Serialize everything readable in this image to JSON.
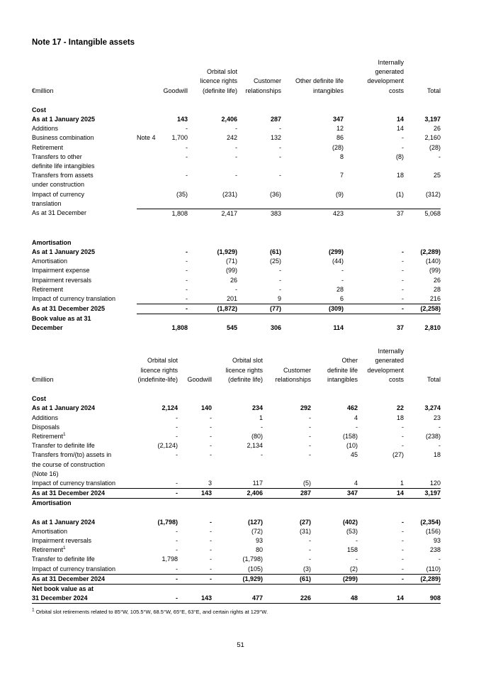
{
  "page": {
    "title": "Note 17 - Intangible assets",
    "number": "51"
  },
  "footnote": {
    "marker": "1",
    "text": "Orbital slot retirements related to 85°W, 105.5°W, 68.5°W, 65°E, 63°E, and certain rights at 129°W."
  },
  "table_2025": {
    "unit_label": "€million",
    "has_note_col": true,
    "columns": [
      "Goodwill",
      "Orbital slot\nlicence rights\n(definite life)",
      "Customer\nrelationships",
      "Other definite life\nintangibles",
      "Internally\ngenerated\ndevelopment\ncosts",
      "Total"
    ],
    "rows": [
      {
        "label": "Cost",
        "bold": true,
        "values": []
      },
      {
        "label": "As at 1 January 2025",
        "bold": true,
        "values": [
          "143",
          "2,406",
          "287",
          "347",
          "14",
          "3,197"
        ]
      },
      {
        "label": "Additions",
        "values": [
          "-",
          "-",
          "-",
          "12",
          "14",
          "26"
        ]
      },
      {
        "label": "Business combination",
        "note": "Note 4",
        "values": [
          "1,700",
          "242",
          "132",
          "86",
          "-",
          "2,160"
        ]
      },
      {
        "label": "Retirement",
        "values": [
          "-",
          "-",
          "-",
          "(28)",
          "-",
          "(28)"
        ]
      },
      {
        "label": "Transfers to other\ndefinite life intangibles",
        "values": [
          "-",
          "-",
          "-",
          "8",
          "(8)",
          "-"
        ]
      },
      {
        "label": "Transfers from assets\nunder construction",
        "values": [
          "-",
          "-",
          "-",
          "7",
          "18",
          "25"
        ]
      },
      {
        "label": "Impact of currency\ntranslation",
        "values": [
          "(35)",
          "(231)",
          "(36)",
          "(9)",
          "(1)",
          "(312)"
        ]
      },
      {
        "label": "As at 31 December",
        "rule_top": true,
        "values": [
          "1,808",
          "2,417",
          "383",
          "423",
          "37",
          "5,068"
        ]
      },
      {
        "label": "Amortisation",
        "bold": true,
        "gap": "lg",
        "values": []
      },
      {
        "label": "As at 1 January 2025",
        "bold": true,
        "values": [
          "-",
          "(1,929)",
          "(61)",
          "(299)",
          "-",
          "(2,289)"
        ]
      },
      {
        "label": "Amortisation",
        "values": [
          "-",
          "(71)",
          "(25)",
          "(44)",
          "-",
          "(140)"
        ]
      },
      {
        "label": "Impairment expense",
        "values": [
          "-",
          "(99)",
          "-",
          "-",
          "-",
          "(99)"
        ]
      },
      {
        "label": "Impairment reversals",
        "values": [
          "-",
          "26",
          "-",
          "-",
          "-",
          "26"
        ]
      },
      {
        "label": "Retirement",
        "values": [
          "-",
          "-",
          "-",
          "28",
          "-",
          "28"
        ]
      },
      {
        "label": "Impact of currency translation",
        "values": [
          "-",
          "201",
          "9",
          "6",
          "-",
          "216"
        ]
      },
      {
        "label": "As at 31 December 2025",
        "bold": true,
        "rule_top": true,
        "rule_bottom": true,
        "values": [
          "-",
          "(1,872)",
          "(77)",
          "(309)",
          "-",
          "(2,258)"
        ]
      },
      {
        "label": "Book value as at 31\nDecember",
        "bold": true,
        "valign": "bottom",
        "values": [
          "1,808",
          "545",
          "306",
          "114",
          "37",
          "2,810"
        ]
      }
    ]
  },
  "table_2024": {
    "unit_label": "€million",
    "has_note_col": false,
    "columns": [
      "Orbital slot\nlicence rights\n(indefinite-life)",
      "Goodwill",
      "Orbital slot\nlicence rights\n(definite life)",
      "Customer\nrelationships",
      "Other\ndefinite life\nintangibles",
      "Internally\ngenerated\ndevelopment\ncosts",
      "Total"
    ],
    "rows": [
      {
        "label": "Cost",
        "bold": true,
        "values": []
      },
      {
        "label": "As at 1 January 2024",
        "bold": true,
        "values": [
          "2,124",
          "140",
          "234",
          "292",
          "462",
          "22",
          "3,274"
        ]
      },
      {
        "label": "Additions",
        "values": [
          "-",
          "-",
          "1",
          "-",
          "4",
          "18",
          "23"
        ]
      },
      {
        "label": "Disposals",
        "values": [
          "-",
          "-",
          "-",
          "-",
          "-",
          "-",
          "-"
        ]
      },
      {
        "label": "Retirement",
        "sup": "1",
        "values": [
          "-",
          "-",
          "(80)",
          "-",
          "(158)",
          "-",
          "(238)"
        ]
      },
      {
        "label": "Transfer to definite life",
        "values": [
          "(2,124)",
          "-",
          "2,134",
          "-",
          "(10)",
          "-",
          "-"
        ]
      },
      {
        "label": "Transfers from/(to) assets in\nthe course of construction\n(Note 16)",
        "values": [
          "-",
          "-",
          "-",
          "-",
          "45",
          "(27)",
          "18"
        ]
      },
      {
        "label": "Impact of currency translation",
        "rule_bottom": true,
        "values": [
          "-",
          "3",
          "117",
          "(5)",
          "4",
          "1",
          "120"
        ]
      },
      {
        "label": "As at 31 December 2024",
        "bold": true,
        "rule_bottom": true,
        "values": [
          "-",
          "143",
          "2,406",
          "287",
          "347",
          "14",
          "3,197"
        ]
      },
      {
        "label": "Amortisation",
        "bold": true,
        "values": []
      },
      {
        "label": "As at 1 January 2024",
        "bold": true,
        "gap": "sm",
        "values": [
          "(1,798)",
          "-",
          "(127)",
          "(27)",
          "(402)",
          "-",
          "(2,354)"
        ]
      },
      {
        "label": "Amortisation",
        "values": [
          "-",
          "-",
          "(72)",
          "(31)",
          "(53)",
          "-",
          "(156)"
        ]
      },
      {
        "label": "Impairment reversals",
        "values": [
          "-",
          "-",
          "93",
          "-",
          "-",
          "-",
          "93"
        ]
      },
      {
        "label": "Retirement",
        "sup": "1",
        "values": [
          "-",
          "-",
          "80",
          "-",
          "158",
          "-",
          "238"
        ]
      },
      {
        "label": "Transfer to definite life",
        "values": [
          "1,798",
          "-",
          "(1,798)",
          "-",
          "-",
          "-",
          "-"
        ]
      },
      {
        "label": "Impact of currency translation",
        "values": [
          "-",
          "-",
          "(105)",
          "(3)",
          "(2)",
          "-",
          "(110)"
        ]
      },
      {
        "label": "As at 31 December 2024",
        "bold": true,
        "rule_top": true,
        "rule_bottom": true,
        "values": [
          "-",
          "-",
          "(1,929)",
          "(61)",
          "(299)",
          "-",
          "(2,289)"
        ]
      },
      {
        "label": "Net book value as at\n31 December 2024",
        "bold": true,
        "valign": "bottom",
        "rule_bottom": true,
        "values": [
          "-",
          "143",
          "477",
          "226",
          "48",
          "14",
          "908"
        ]
      }
    ]
  }
}
